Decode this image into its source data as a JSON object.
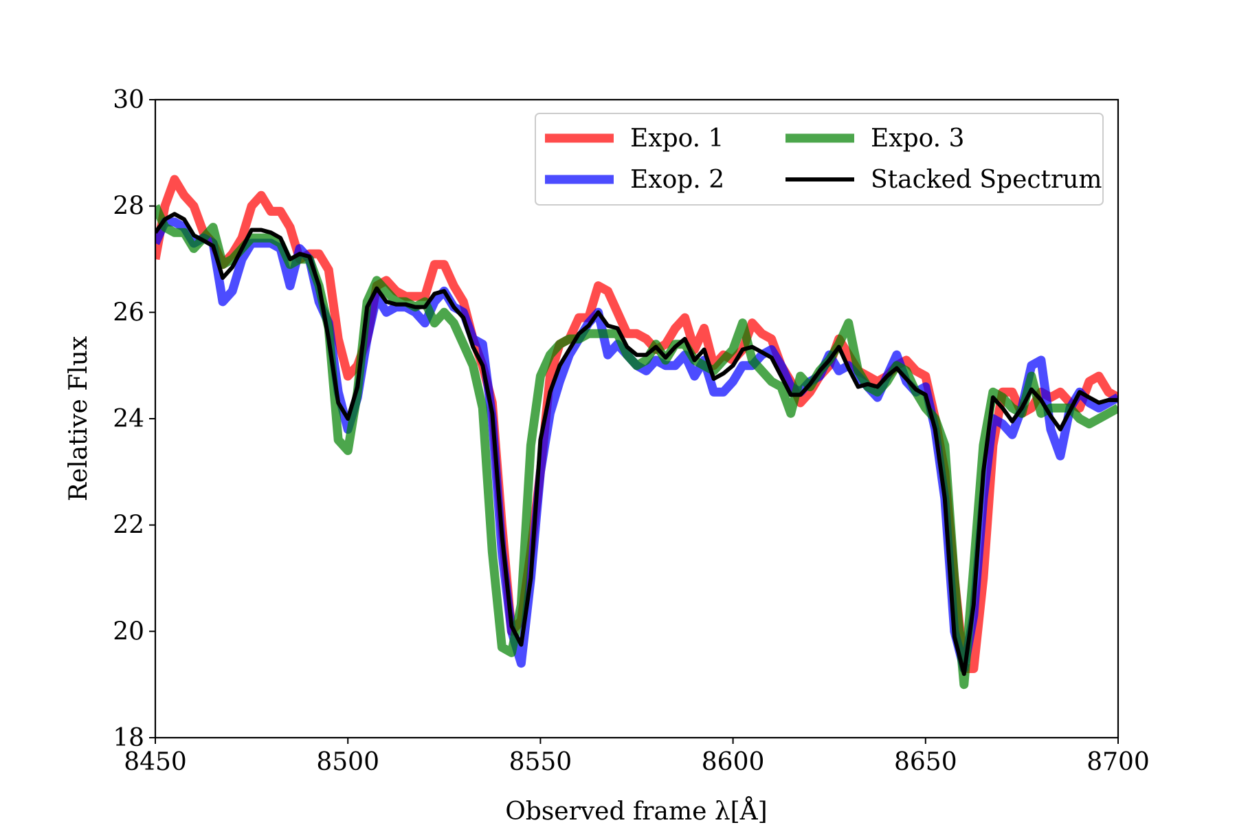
{
  "chart_data": {
    "type": "line",
    "title": "",
    "xlabel": "Observed frame λ[Å]",
    "ylabel": "Relative Flux",
    "xlim": [
      8450,
      8700
    ],
    "ylim": [
      18,
      30
    ],
    "xticks": [
      8450,
      8500,
      8550,
      8600,
      8650,
      8700
    ],
    "yticks": [
      18,
      20,
      22,
      24,
      26,
      28,
      30
    ],
    "grid": false,
    "legend_position": "top-right",
    "legend_columns": 2,
    "x": [
      8450,
      8452.5,
      8455,
      8457.5,
      8460,
      8462.5,
      8465,
      8467.5,
      8470,
      8472.5,
      8475,
      8477.5,
      8480,
      8482.5,
      8485,
      8487.5,
      8490,
      8492.5,
      8495,
      8497.5,
      8500,
      8502.5,
      8505,
      8507.5,
      8510,
      8512.5,
      8515,
      8517.5,
      8520,
      8522.5,
      8525,
      8527.5,
      8530,
      8532.5,
      8535,
      8537.5,
      8540,
      8542.5,
      8545,
      8547.5,
      8550,
      8552.5,
      8555,
      8557.5,
      8560,
      8562.5,
      8565,
      8567.5,
      8570,
      8572.5,
      8575,
      8577.5,
      8580,
      8582.5,
      8585,
      8587.5,
      8590,
      8592.5,
      8595,
      8597.5,
      8600,
      8602.5,
      8605,
      8607.5,
      8610,
      8612.5,
      8615,
      8617.5,
      8620,
      8622.5,
      8625,
      8627.5,
      8630,
      8632.5,
      8635,
      8637.5,
      8640,
      8642.5,
      8645,
      8647.5,
      8650,
      8652.5,
      8655,
      8657.5,
      8660,
      8662.5,
      8665,
      8667.5,
      8670,
      8672.5,
      8675,
      8677.5,
      8680,
      8682.5,
      8685,
      8687.5,
      8690,
      8692.5,
      8695,
      8697.5,
      8700
    ],
    "series": [
      {
        "name": "Expo. 1",
        "color": "#ff0000",
        "opacity": 0.7,
        "width": 13,
        "values": [
          27.0,
          28.0,
          28.5,
          28.2,
          28.0,
          27.5,
          27.3,
          26.9,
          27.1,
          27.4,
          28.0,
          28.2,
          27.9,
          27.9,
          27.6,
          27.0,
          27.1,
          27.1,
          26.8,
          25.5,
          24.8,
          25.0,
          25.5,
          26.5,
          26.6,
          26.4,
          26.3,
          26.3,
          26.3,
          26.9,
          26.9,
          26.5,
          26.2,
          25.5,
          25.0,
          24.3,
          22.0,
          20.0,
          20.2,
          21.5,
          23.0,
          24.8,
          25.4,
          25.5,
          25.9,
          25.9,
          26.5,
          26.4,
          26.0,
          25.6,
          25.6,
          25.5,
          25.3,
          25.4,
          25.7,
          25.9,
          25.3,
          25.7,
          25.0,
          25.2,
          25.1,
          25.3,
          25.8,
          25.6,
          25.5,
          25.0,
          24.7,
          24.3,
          24.5,
          24.8,
          25.0,
          25.5,
          25.2,
          24.9,
          24.8,
          24.7,
          24.8,
          25.0,
          25.1,
          24.9,
          24.8,
          24.0,
          23.0,
          21.0,
          19.3,
          19.3,
          21.0,
          23.5,
          24.5,
          24.5,
          24.1,
          24.2,
          24.5,
          24.4,
          24.5,
          24.3,
          24.2,
          24.7,
          24.8,
          24.5,
          24.4
        ]
      },
      {
        "name": "Exop. 2",
        "color": "#0000ff",
        "opacity": 0.7,
        "width": 13,
        "values": [
          27.3,
          27.7,
          27.7,
          27.6,
          27.3,
          27.4,
          27.3,
          26.2,
          26.4,
          27.0,
          27.3,
          27.3,
          27.3,
          27.2,
          26.5,
          27.2,
          27.0,
          26.2,
          25.8,
          24.5,
          23.8,
          24.4,
          25.5,
          26.3,
          26.0,
          26.1,
          26.1,
          26.0,
          25.8,
          26.2,
          26.4,
          26.1,
          26.0,
          25.5,
          25.4,
          24.0,
          21.5,
          20.0,
          19.4,
          21.0,
          23.0,
          24.1,
          24.7,
          25.2,
          25.5,
          25.8,
          26.0,
          25.2,
          25.4,
          25.2,
          25.0,
          24.9,
          25.1,
          25.0,
          25.0,
          25.2,
          24.8,
          25.1,
          24.5,
          24.5,
          24.7,
          25.0,
          25.0,
          25.2,
          25.3,
          25.0,
          24.6,
          24.5,
          24.7,
          24.8,
          25.2,
          24.9,
          25.0,
          24.8,
          24.6,
          24.4,
          24.8,
          25.2,
          24.7,
          24.5,
          24.6,
          23.8,
          22.5,
          20.0,
          19.3,
          20.3,
          22.5,
          24.0,
          23.9,
          23.7,
          24.2,
          25.0,
          25.1,
          23.8,
          23.3,
          24.2,
          24.5,
          24.3,
          24.2,
          24.3,
          24.4
        ]
      },
      {
        "name": "Expo. 3",
        "color": "#008000",
        "opacity": 0.7,
        "width": 13,
        "values": [
          28.0,
          27.6,
          27.5,
          27.5,
          27.2,
          27.4,
          27.6,
          26.9,
          27.0,
          27.2,
          27.4,
          27.4,
          27.4,
          27.3,
          26.9,
          27.0,
          27.0,
          26.5,
          25.7,
          23.6,
          23.4,
          24.5,
          26.2,
          26.6,
          26.4,
          26.2,
          26.2,
          26.1,
          26.2,
          25.8,
          26.0,
          25.8,
          25.4,
          25.0,
          24.2,
          21.5,
          19.7,
          19.6,
          20.5,
          23.5,
          24.8,
          25.2,
          25.4,
          25.5,
          25.5,
          25.6,
          25.6,
          25.6,
          25.6,
          25.2,
          25.0,
          25.1,
          25.4,
          25.1,
          25.4,
          25.4,
          25.1,
          25.0,
          24.9,
          25.1,
          25.3,
          25.8,
          25.1,
          24.9,
          24.7,
          24.6,
          24.1,
          24.8,
          24.6,
          24.9,
          25.1,
          25.4,
          25.8,
          24.9,
          24.6,
          24.5,
          24.7,
          25.0,
          24.9,
          24.5,
          24.2,
          24.0,
          23.5,
          21.0,
          19.0,
          21.2,
          23.5,
          24.5,
          24.4,
          24.2,
          24.1,
          24.8,
          24.1,
          24.2,
          24.2,
          24.2,
          24.0,
          23.9,
          24.0,
          24.1,
          24.2
        ]
      },
      {
        "name": "Stacked Spectrum",
        "color": "#000000",
        "opacity": 1,
        "width": 6,
        "values": [
          27.5,
          27.75,
          27.85,
          27.75,
          27.45,
          27.35,
          27.25,
          26.65,
          26.85,
          27.2,
          27.55,
          27.55,
          27.5,
          27.4,
          27.0,
          27.1,
          27.05,
          26.5,
          25.5,
          24.3,
          24.0,
          24.6,
          26.1,
          26.45,
          26.2,
          26.15,
          26.15,
          26.1,
          26.1,
          26.35,
          26.4,
          26.1,
          25.9,
          25.35,
          25.0,
          24.1,
          21.8,
          20.1,
          19.75,
          21.0,
          23.6,
          24.5,
          25.0,
          25.3,
          25.6,
          25.75,
          26.0,
          25.75,
          25.7,
          25.35,
          25.2,
          25.2,
          25.35,
          25.15,
          25.35,
          25.5,
          25.1,
          25.3,
          24.75,
          24.85,
          25.0,
          25.3,
          25.35,
          25.25,
          25.15,
          24.8,
          24.45,
          24.45,
          24.65,
          24.9,
          25.1,
          25.35,
          24.95,
          24.6,
          24.65,
          24.6,
          24.8,
          24.95,
          24.75,
          24.55,
          24.45,
          23.8,
          22.5,
          19.9,
          19.2,
          20.5,
          23.0,
          24.4,
          24.2,
          23.95,
          24.2,
          24.55,
          24.35,
          24.05,
          23.8,
          24.15,
          24.5,
          24.4,
          24.3,
          24.35,
          24.35
        ]
      }
    ]
  }
}
